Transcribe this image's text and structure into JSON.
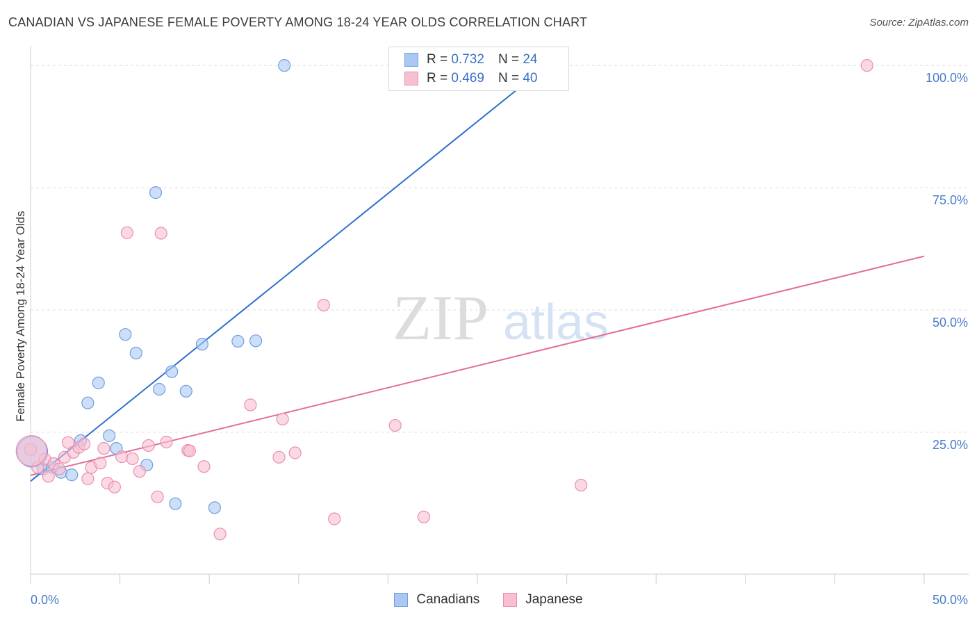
{
  "title": "CANADIAN VS JAPANESE FEMALE POVERTY AMONG 18-24 YEAR OLDS CORRELATION CHART",
  "source": "Source: ZipAtlas.com",
  "watermark": {
    "zip": "ZIP",
    "atlas": "atlas"
  },
  "legend": {
    "rows": [
      {
        "r_label": "R =",
        "r_value": "0.732",
        "n_label": "N =",
        "n_value": "24"
      },
      {
        "r_label": "R =",
        "r_value": "0.469",
        "n_label": "N =",
        "n_value": "40"
      }
    ]
  },
  "colors": {
    "canadians_fill": "#aac8f3",
    "canadians_stroke": "#6f9ee0",
    "canadians_line": "#2d6fd0",
    "japanese_fill": "#f7c0d2",
    "japanese_stroke": "#ea8eae",
    "japanese_line": "#e36d98",
    "grid": "#dddddd",
    "tick": "#4a7cc9"
  },
  "chart_data": {
    "type": "scatter",
    "ylabel": "Female Poverty Among 18-24 Year Olds",
    "xlim": [
      0,
      50
    ],
    "ylim": [
      -4,
      104
    ],
    "x_tick_labels": [
      "0.0%",
      "50.0%"
    ],
    "y_ticks": [
      25,
      50,
      75,
      100
    ],
    "y_tick_labels": [
      "25.0%",
      "50.0%",
      "75.0%",
      "100.0%"
    ],
    "grid": "horizontal dashed",
    "legend_position": "top-center",
    "series": [
      {
        "name": "Canadians",
        "r": 0.732,
        "n": 24,
        "points": [
          [
            0.1,
            21.0
          ],
          [
            0.7,
            17.5
          ],
          [
            1.2,
            17.8
          ],
          [
            1.7,
            16.8
          ],
          [
            2.3,
            16.3
          ],
          [
            2.8,
            23.3
          ],
          [
            3.2,
            31.0
          ],
          [
            3.8,
            35.1
          ],
          [
            4.4,
            24.3
          ],
          [
            4.8,
            21.7
          ],
          [
            5.3,
            45.0
          ],
          [
            5.9,
            41.2
          ],
          [
            6.5,
            18.3
          ],
          [
            7.0,
            74.0
          ],
          [
            7.2,
            33.8
          ],
          [
            7.9,
            37.4
          ],
          [
            8.1,
            10.4
          ],
          [
            8.7,
            33.4
          ],
          [
            9.6,
            43.0
          ],
          [
            10.3,
            9.6
          ],
          [
            11.6,
            43.6
          ],
          [
            12.6,
            43.7
          ],
          [
            14.2,
            100.0
          ],
          [
            28.9,
            100.0
          ]
        ],
        "trend": [
          [
            0,
            15.0
          ],
          [
            28.9,
            100.0
          ]
        ]
      },
      {
        "name": "Japanese",
        "r": 0.469,
        "n": 40,
        "points": [
          [
            0.0,
            21.5
          ],
          [
            0.4,
            17.8
          ],
          [
            0.8,
            19.5
          ],
          [
            1.0,
            16.0
          ],
          [
            1.3,
            18.6
          ],
          [
            1.6,
            17.5
          ],
          [
            1.9,
            19.9
          ],
          [
            2.1,
            22.9
          ],
          [
            2.4,
            20.9
          ],
          [
            2.7,
            21.9
          ],
          [
            3.0,
            22.6
          ],
          [
            3.2,
            15.5
          ],
          [
            3.4,
            17.8
          ],
          [
            3.9,
            18.7
          ],
          [
            4.1,
            21.7
          ],
          [
            4.3,
            14.6
          ],
          [
            4.7,
            13.8
          ],
          [
            5.1,
            20.0
          ],
          [
            5.4,
            65.8
          ],
          [
            5.7,
            19.6
          ],
          [
            6.1,
            17.0
          ],
          [
            6.6,
            22.3
          ],
          [
            7.1,
            11.8
          ],
          [
            7.3,
            65.7
          ],
          [
            7.6,
            23.0
          ],
          [
            8.8,
            21.3
          ],
          [
            8.9,
            21.2
          ],
          [
            9.7,
            18.0
          ],
          [
            10.6,
            4.2
          ],
          [
            12.3,
            30.6
          ],
          [
            13.9,
            19.9
          ],
          [
            14.1,
            27.7
          ],
          [
            14.8,
            20.8
          ],
          [
            16.4,
            51.0
          ],
          [
            17.0,
            7.3
          ],
          [
            20.4,
            26.4
          ],
          [
            22.0,
            7.7
          ],
          [
            30.8,
            14.2
          ],
          [
            46.8,
            100.0
          ],
          [
            0.05,
            21.2
          ]
        ],
        "trend": [
          [
            0,
            16.2
          ],
          [
            50,
            61.0
          ]
        ]
      }
    ]
  }
}
